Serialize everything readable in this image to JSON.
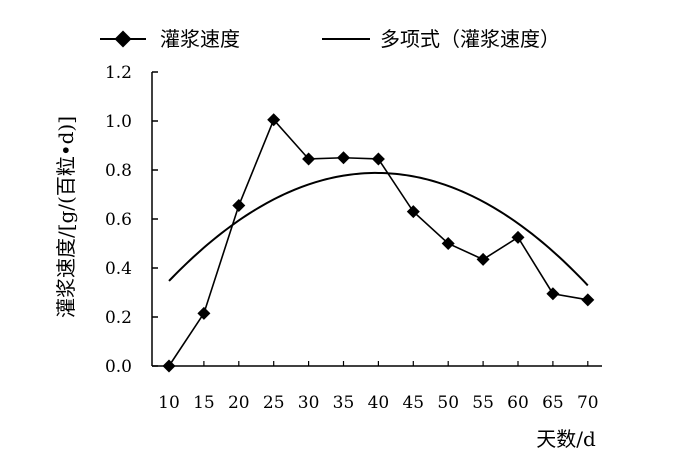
{
  "chart_data": {
    "type": "line",
    "xlabel": "天数/d",
    "ylabel": "灌浆速度/[g/(百粒•d)]",
    "x": [
      10,
      15,
      20,
      25,
      30,
      35,
      40,
      45,
      50,
      55,
      60,
      65,
      70
    ],
    "ylim": [
      0,
      1.2
    ],
    "yticks": [
      "0.0",
      "0.2",
      "0.4",
      "0.6",
      "0.8",
      "1.0",
      "1.2"
    ],
    "grid": false,
    "legend_position": "top",
    "series": [
      {
        "name": "灌浆速度",
        "marker": "diamond",
        "values": [
          0.0,
          0.215,
          0.655,
          1.005,
          0.845,
          0.85,
          0.845,
          0.63,
          0.5,
          0.435,
          0.525,
          0.295,
          0.27
        ]
      },
      {
        "name": "多项式（灌浆速度）",
        "marker": "none",
        "fit": {
          "kind": "polynomial",
          "coefficients": [
            -0.0005,
            0.0397,
            0.0
          ]
        }
      }
    ],
    "colors": {
      "line": "#000000",
      "background": "#ffffff"
    }
  }
}
